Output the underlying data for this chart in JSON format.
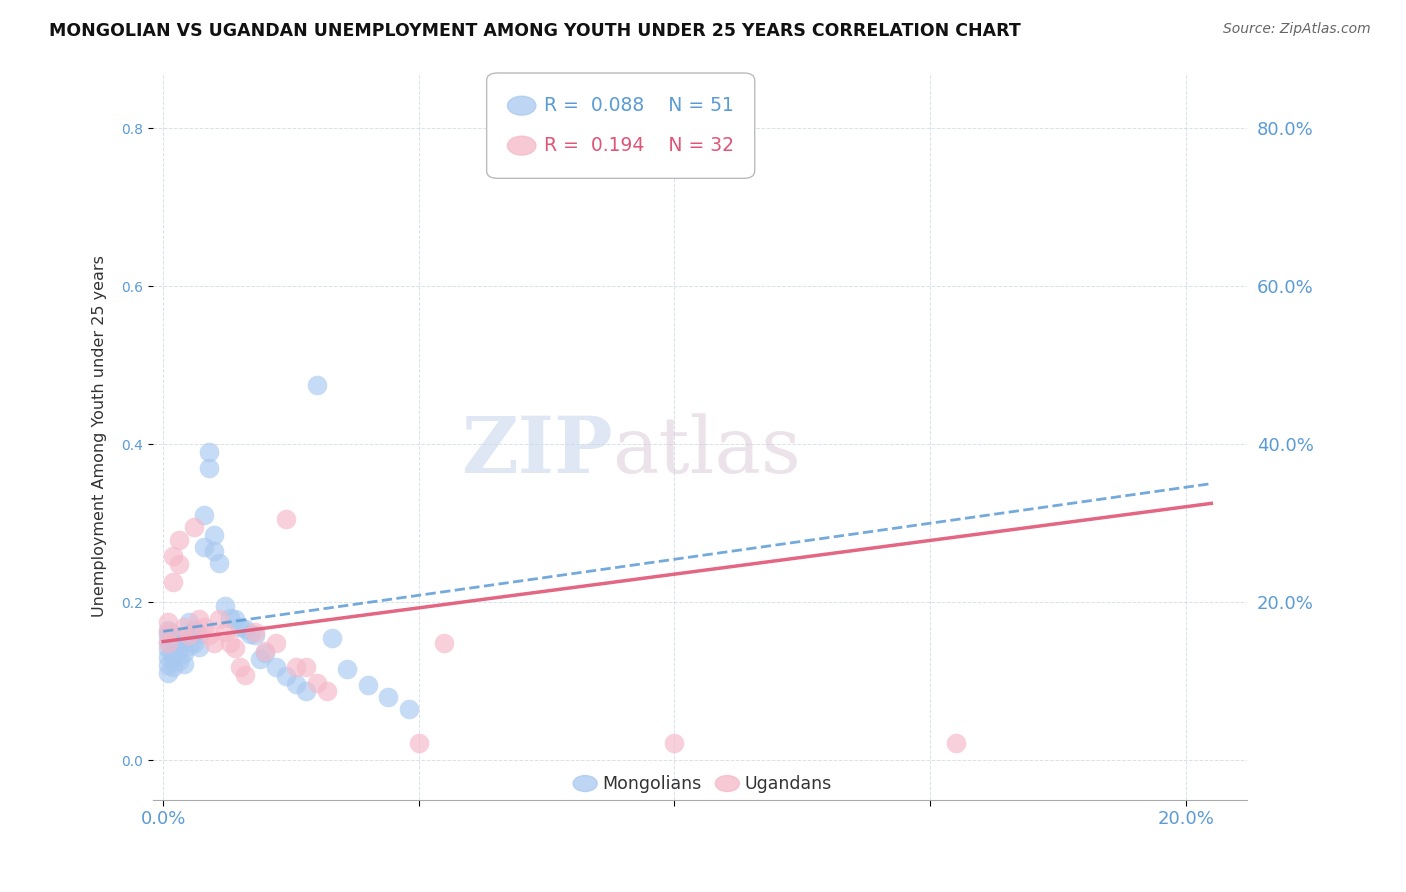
{
  "title": "MONGOLIAN VS UGANDAN UNEMPLOYMENT AMONG YOUTH UNDER 25 YEARS CORRELATION CHART",
  "source": "Source: ZipAtlas.com",
  "ylabel": "Unemployment Among Youth under 25 years",
  "mongolian_R": 0.088,
  "mongolian_N": 51,
  "ugandan_R": 0.194,
  "ugandan_N": 32,
  "mongolian_color": "#a8c8f0",
  "ugandan_color": "#f5b8c8",
  "mongolian_line_color": "#5b9bd5",
  "ugandan_line_color": "#e05575",
  "xmin": -0.002,
  "xmax": 0.212,
  "ymin": -0.05,
  "ymax": 0.87,
  "x_ticks": [
    0.0,
    0.05,
    0.1,
    0.15,
    0.2
  ],
  "x_tick_labels": [
    "0.0%",
    "",
    "",
    "",
    "20.0%"
  ],
  "y_ticks": [
    0.0,
    0.2,
    0.4,
    0.6,
    0.8
  ],
  "y_tick_labels": [
    "",
    "20.0%",
    "40.0%",
    "60.0%",
    "80.0%"
  ],
  "watermark_zip": "ZIP",
  "watermark_atlas": "atlas",
  "mongolian_x": [
    0.001,
    0.001,
    0.001,
    0.001,
    0.001,
    0.001,
    0.001,
    0.002,
    0.002,
    0.002,
    0.002,
    0.002,
    0.003,
    0.003,
    0.003,
    0.004,
    0.004,
    0.004,
    0.005,
    0.005,
    0.005,
    0.006,
    0.006,
    0.007,
    0.007,
    0.008,
    0.008,
    0.009,
    0.009,
    0.01,
    0.01,
    0.011,
    0.012,
    0.013,
    0.014,
    0.015,
    0.016,
    0.017,
    0.018,
    0.019,
    0.02,
    0.022,
    0.024,
    0.026,
    0.028,
    0.03,
    0.033,
    0.036,
    0.04,
    0.044,
    0.048
  ],
  "mongolian_y": [
    0.165,
    0.158,
    0.15,
    0.14,
    0.13,
    0.12,
    0.11,
    0.16,
    0.15,
    0.14,
    0.13,
    0.118,
    0.155,
    0.14,
    0.125,
    0.15,
    0.135,
    0.122,
    0.175,
    0.16,
    0.145,
    0.165,
    0.148,
    0.16,
    0.143,
    0.31,
    0.27,
    0.39,
    0.37,
    0.285,
    0.265,
    0.25,
    0.195,
    0.18,
    0.178,
    0.168,
    0.166,
    0.16,
    0.158,
    0.128,
    0.135,
    0.118,
    0.106,
    0.096,
    0.088,
    0.475,
    0.155,
    0.115,
    0.095,
    0.08,
    0.065
  ],
  "ugandan_x": [
    0.001,
    0.001,
    0.001,
    0.002,
    0.002,
    0.003,
    0.003,
    0.004,
    0.005,
    0.006,
    0.007,
    0.008,
    0.009,
    0.01,
    0.011,
    0.012,
    0.013,
    0.014,
    0.015,
    0.016,
    0.018,
    0.02,
    0.022,
    0.024,
    0.026,
    0.028,
    0.03,
    0.032,
    0.05,
    0.055,
    0.1,
    0.155
  ],
  "ugandan_y": [
    0.175,
    0.162,
    0.148,
    0.258,
    0.225,
    0.278,
    0.248,
    0.168,
    0.158,
    0.295,
    0.178,
    0.168,
    0.158,
    0.148,
    0.178,
    0.162,
    0.148,
    0.142,
    0.118,
    0.108,
    0.162,
    0.138,
    0.148,
    0.305,
    0.118,
    0.118,
    0.098,
    0.088,
    0.022,
    0.148,
    0.022,
    0.022
  ]
}
